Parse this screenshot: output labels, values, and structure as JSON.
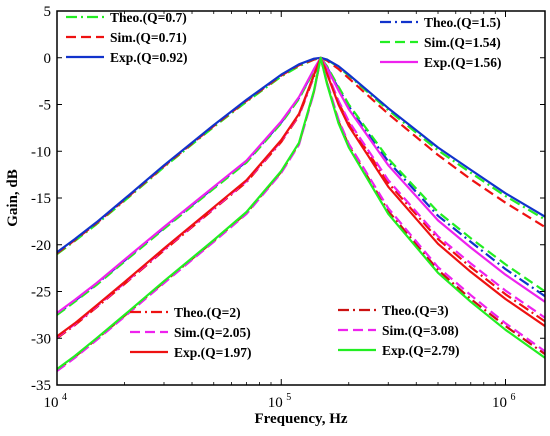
{
  "chart_data": {
    "type": "line",
    "title": "",
    "xlabel": "Frequency, Hz",
    "ylabel": "Gain, dB",
    "x_scale": "log",
    "xlim": [
      10000,
      1500000
    ],
    "ylim": [
      -35,
      5
    ],
    "x_ticks": [
      {
        "value": 10000,
        "base": "10",
        "exp": "4"
      },
      {
        "value": 100000,
        "base": "10",
        "exp": "5"
      },
      {
        "value": 1000000,
        "base": "10",
        "exp": "6"
      }
    ],
    "y_ticks": [
      5,
      0,
      -5,
      -10,
      -15,
      -20,
      -25,
      -30,
      -35
    ],
    "grid": false,
    "legend_groups": [
      {
        "position": "top-left",
        "entries": [
          0,
          1,
          2
        ]
      },
      {
        "position": "top-right",
        "entries": [
          3,
          4,
          5
        ]
      },
      {
        "position": "bottom-left",
        "entries": [
          6,
          7,
          8
        ]
      },
      {
        "position": "bottom-right",
        "entries": [
          9,
          10,
          11
        ]
      }
    ],
    "x": [
      10000,
      12000,
      15000,
      20000,
      30000,
      50000,
      70000,
      100000,
      120000,
      140000,
      150000,
      160000,
      180000,
      200000,
      300000,
      500000,
      700000,
      1000000,
      1500000
    ],
    "series": [
      {
        "name": "Theo.(Q=0.7)",
        "color": "#22ee22",
        "dash": "dashdot",
        "values": [
          -21.0,
          -19.6,
          -17.8,
          -15.3,
          -11.7,
          -7.4,
          -4.7,
          -2.0,
          -0.9,
          -0.2,
          0.0,
          -0.2,
          -1.0,
          -1.9,
          -5.6,
          -9.9,
          -12.3,
          -14.8,
          -17.3
        ]
      },
      {
        "name": "Sim.(Q=0.71)",
        "color": "#ee1111",
        "dash": "dash",
        "values": [
          -20.9,
          -19.5,
          -17.7,
          -15.2,
          -11.6,
          -7.3,
          -4.6,
          -1.9,
          -0.8,
          -0.2,
          0.0,
          -0.3,
          -1.2,
          -2.2,
          -6.0,
          -10.4,
          -13.0,
          -15.5,
          -18.1
        ]
      },
      {
        "name": "Exp.(Q=0.92)",
        "color": "#1133cc",
        "dash": "solid",
        "values": [
          -20.8,
          -19.4,
          -17.6,
          -15.1,
          -11.5,
          -7.2,
          -4.5,
          -1.8,
          -0.7,
          -0.1,
          0.0,
          -0.2,
          -0.9,
          -1.8,
          -5.4,
          -9.6,
          -12.0,
          -14.5,
          -17.0
        ]
      },
      {
        "name": "Theo.(Q=1.5)",
        "color": "#1133cc",
        "dash": "dashdot",
        "values": [
          -27.4,
          -26.0,
          -24.2,
          -21.7,
          -18.2,
          -13.9,
          -11.1,
          -6.9,
          -4.3,
          -1.3,
          0.0,
          -1.0,
          -3.3,
          -5.2,
          -11.1,
          -16.9,
          -19.7,
          -22.6,
          -25.5
        ]
      },
      {
        "name": "Sim.(Q=1.54)",
        "color": "#22ee22",
        "dash": "dash",
        "values": [
          -27.5,
          -26.1,
          -24.3,
          -21.8,
          -18.3,
          -14.0,
          -11.2,
          -7.0,
          -4.4,
          -1.4,
          0.0,
          -0.9,
          -3.1,
          -5.0,
          -10.8,
          -16.5,
          -19.3,
          -22.1,
          -25.0
        ]
      },
      {
        "name": "Exp.(Q=1.56)",
        "color": "#ee22ee",
        "dash": "solid",
        "values": [
          -27.3,
          -25.9,
          -24.1,
          -21.6,
          -18.1,
          -13.8,
          -11.0,
          -6.8,
          -4.2,
          -1.2,
          0.0,
          -1.1,
          -3.5,
          -5.5,
          -11.5,
          -17.4,
          -20.3,
          -23.2,
          -26.1
        ]
      },
      {
        "name": "Theo.(Q=2)",
        "color": "#ee1111",
        "dash": "dashdot",
        "values": [
          -30.0,
          -28.6,
          -26.7,
          -24.2,
          -20.6,
          -16.2,
          -13.3,
          -9.0,
          -6.2,
          -2.0,
          0.0,
          -1.6,
          -4.8,
          -7.0,
          -13.4,
          -19.4,
          -22.4,
          -25.3,
          -28.2
        ]
      },
      {
        "name": "Sim.(Q=2.05)",
        "color": "#ee22ee",
        "dash": "dash",
        "values": [
          -29.9,
          -28.5,
          -26.6,
          -24.1,
          -20.5,
          -16.1,
          -13.2,
          -8.9,
          -6.1,
          -1.9,
          0.0,
          -1.5,
          -4.6,
          -6.8,
          -13.1,
          -19.1,
          -22.0,
          -24.9,
          -27.8
        ]
      },
      {
        "name": "Exp.(Q=1.97)",
        "color": "#ee1111",
        "dash": "solid",
        "values": [
          -29.8,
          -28.4,
          -26.5,
          -24.0,
          -20.4,
          -16.0,
          -13.1,
          -8.8,
          -6.0,
          -1.8,
          0.0,
          -1.7,
          -5.0,
          -7.3,
          -13.8,
          -19.9,
          -22.9,
          -25.8,
          -28.7
        ]
      },
      {
        "name": "Theo.(Q=3)",
        "color": "#cc1111",
        "dash": "dashdot",
        "values": [
          -33.4,
          -32.0,
          -30.1,
          -27.6,
          -24.0,
          -19.6,
          -16.6,
          -12.2,
          -9.2,
          -3.6,
          0.0,
          -2.7,
          -6.8,
          -9.4,
          -16.4,
          -22.7,
          -25.8,
          -28.7,
          -31.7
        ]
      },
      {
        "name": "Sim.(Q=3.08)",
        "color": "#ee22ee",
        "dash": "dash",
        "values": [
          -33.5,
          -32.1,
          -30.2,
          -27.7,
          -24.1,
          -19.7,
          -16.7,
          -12.3,
          -9.3,
          -3.7,
          0.0,
          -2.6,
          -6.6,
          -9.2,
          -16.1,
          -22.4,
          -25.4,
          -28.4,
          -31.4
        ]
      },
      {
        "name": "Exp.(Q=2.79)",
        "color": "#22ee22",
        "dash": "solid",
        "values": [
          -33.3,
          -31.9,
          -30.0,
          -27.5,
          -23.9,
          -19.5,
          -16.5,
          -12.1,
          -9.1,
          -3.5,
          0.0,
          -2.8,
          -7.0,
          -9.6,
          -16.7,
          -23.0,
          -26.1,
          -29.1,
          -32.1
        ]
      }
    ]
  }
}
